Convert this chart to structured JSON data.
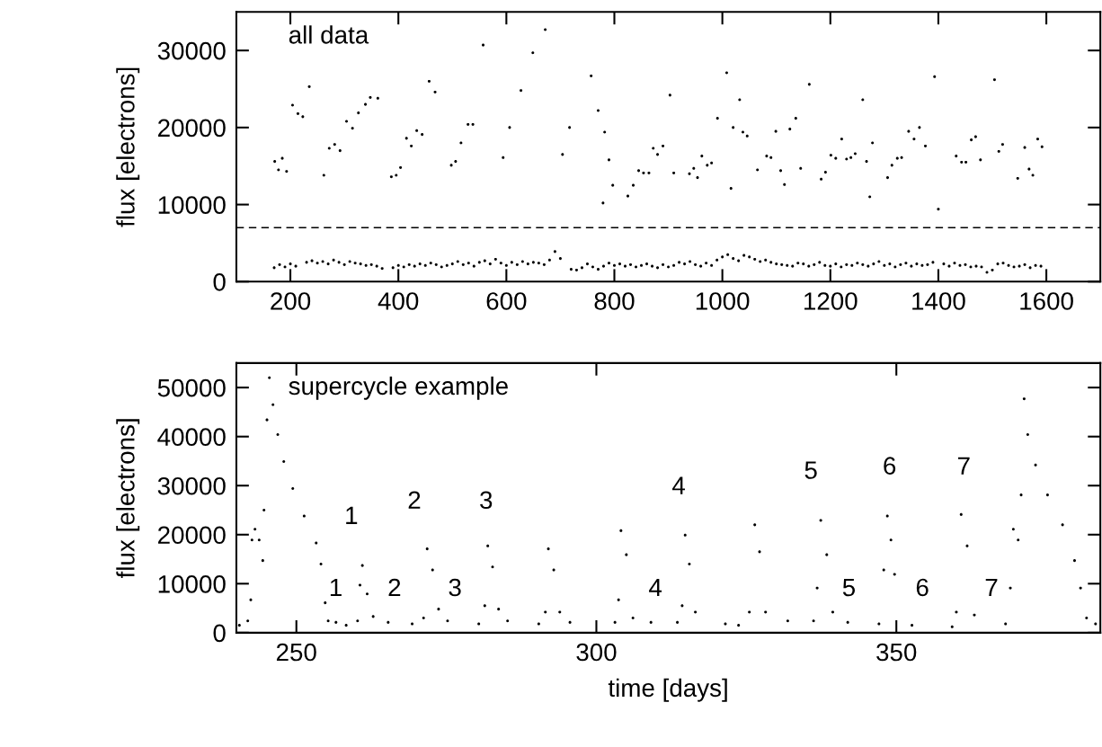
{
  "chart_data": [
    {
      "type": "scatter",
      "title": "all data",
      "ylabel": "flux [electrons]",
      "xlim": [
        100,
        1700
      ],
      "ylim": [
        0,
        35000
      ],
      "xticks": [
        200,
        400,
        600,
        800,
        1000,
        1200,
        1400,
        1600
      ],
      "yticks": [
        0,
        10000,
        20000,
        30000
      ],
      "marker": "circle",
      "ref_lines": [
        {
          "axis": "y",
          "value": 7000,
          "line_style": "dashed",
          "color": "#000000"
        }
      ],
      "series": [
        {
          "color": "#000000",
          "x": [
            171,
            178,
            185,
            193,
            204,
            214,
            223,
            235,
            262,
            272,
            282,
            292,
            304,
            315,
            326,
            339,
            348,
            362,
            387,
            396,
            404,
            415,
            424,
            434,
            444,
            457,
            468,
            498,
            506,
            516,
            529,
            538,
            557,
            594,
            606,
            627,
            649,
            672,
            704,
            717,
            757,
            770,
            782,
            790,
            797,
            779,
            825,
            835,
            845,
            854,
            864,
            872,
            880,
            890,
            903,
            910,
            939,
            947,
            954,
            962,
            972,
            980,
            991,
            1008,
            1016,
            1020,
            1032,
            1038,
            1046,
            1065,
            1082,
            1090,
            1099,
            1108,
            1115,
            1125,
            1136,
            1145,
            1161,
            1183,
            1191,
            1201,
            1210,
            1221,
            1230,
            1238,
            1246,
            1260,
            1267,
            1273,
            1278,
            1306,
            1314,
            1324,
            1332,
            1345,
            1355,
            1365,
            1376,
            1393,
            1400,
            1433,
            1443,
            1451,
            1461,
            1469,
            1478,
            1504,
            1512,
            1519,
            1547,
            1560,
            1568,
            1575,
            1584,
            1592
          ],
          "values": [
            15600,
            14500,
            16000,
            14300,
            22900,
            21800,
            21400,
            25300,
            13800,
            17300,
            17800,
            17000,
            20800,
            19900,
            21900,
            23000,
            23900,
            23800,
            13600,
            13800,
            14800,
            18600,
            17600,
            19600,
            19100,
            26000,
            24600,
            15100,
            15600,
            18000,
            20400,
            20400,
            30700,
            16100,
            20000,
            24800,
            29700,
            32700,
            16500,
            20000,
            26700,
            22200,
            19400,
            15800,
            12500,
            10200,
            11100,
            12500,
            14400,
            14100,
            14100,
            17300,
            16500,
            17600,
            24200,
            14100,
            14000,
            14700,
            13500,
            16300,
            15100,
            15400,
            21200,
            27100,
            12100,
            20000,
            23600,
            19400,
            18900,
            14500,
            16300,
            16100,
            19500,
            14400,
            12600,
            19800,
            21200,
            14700,
            25600,
            13300,
            14200,
            16400,
            16000,
            18500,
            15900,
            16100,
            16600,
            23600,
            15600,
            11000,
            18000,
            13500,
            15100,
            16000,
            16100,
            19500,
            18500,
            20000,
            17600,
            26600,
            9400,
            16300,
            15500,
            15500,
            18400,
            18800,
            15800,
            26200,
            16900,
            17800,
            13400,
            17400,
            14600,
            13800,
            18500,
            17500
          ]
        },
        {
          "color": "#000000",
          "x": [
            170,
            180,
            190,
            200,
            210,
            230,
            240,
            250,
            260,
            270,
            280,
            290,
            300,
            310,
            320,
            330,
            340,
            350,
            360,
            370,
            390,
            400,
            410,
            420,
            430,
            440,
            450,
            460,
            470,
            480,
            490,
            500,
            510,
            520,
            530,
            540,
            550,
            560,
            570,
            580,
            590,
            600,
            610,
            620,
            630,
            640,
            650,
            660,
            670,
            680,
            690,
            700,
            720,
            730,
            740,
            750,
            760,
            770,
            780,
            790,
            800,
            810,
            820,
            830,
            840,
            850,
            860,
            870,
            880,
            890,
            900,
            910,
            920,
            930,
            940,
            950,
            960,
            970,
            980,
            990,
            1000,
            1010,
            1020,
            1030,
            1040,
            1050,
            1060,
            1070,
            1080,
            1090,
            1100,
            1110,
            1120,
            1130,
            1140,
            1150,
            1160,
            1170,
            1180,
            1190,
            1200,
            1210,
            1220,
            1230,
            1240,
            1250,
            1260,
            1270,
            1280,
            1290,
            1300,
            1310,
            1320,
            1330,
            1340,
            1350,
            1360,
            1370,
            1380,
            1390,
            1410,
            1420,
            1430,
            1440,
            1450,
            1460,
            1470,
            1480,
            1490,
            1500,
            1510,
            1520,
            1530,
            1540,
            1550,
            1560,
            1570,
            1580,
            1590
          ],
          "values": [
            1800,
            2200,
            1900,
            2300,
            2000,
            2500,
            2700,
            2400,
            2600,
            2300,
            2800,
            2500,
            2200,
            2600,
            2400,
            2300,
            2100,
            2200,
            2000,
            1700,
            1800,
            2100,
            1900,
            2200,
            2000,
            2300,
            2100,
            2400,
            2200,
            1900,
            2100,
            2300,
            2600,
            2200,
            2400,
            2000,
            2500,
            2700,
            2300,
            2900,
            2400,
            2100,
            2500,
            2200,
            2600,
            2300,
            2500,
            2400,
            2200,
            2800,
            3900,
            3000,
            1600,
            1500,
            1800,
            2300,
            1900,
            1600,
            2000,
            2400,
            2100,
            2300,
            2000,
            2200,
            1900,
            2100,
            2300,
            2000,
            1800,
            2200,
            1900,
            2100,
            2500,
            2300,
            2600,
            2200,
            2000,
            2400,
            2100,
            2800,
            3200,
            3500,
            3000,
            2700,
            3400,
            3200,
            2900,
            2600,
            2800,
            2500,
            2300,
            2200,
            2100,
            2000,
            2400,
            2300,
            2000,
            2200,
            2500,
            2100,
            2000,
            2300,
            1900,
            2200,
            2100,
            2400,
            2200,
            2000,
            2300,
            2600,
            2100,
            2300,
            1900,
            2200,
            2400,
            2000,
            2300,
            2100,
            2200,
            2500,
            2300,
            2000,
            2400,
            2100,
            2200,
            1900,
            2000,
            1900,
            1200,
            1500,
            2300,
            2400,
            2100,
            1900,
            2000,
            2200,
            1800,
            2100,
            2000
          ]
        }
      ]
    },
    {
      "type": "scatter",
      "title": "supercycle example",
      "xlabel": "time [days]",
      "ylabel": "flux [electrons]",
      "xlim": [
        240,
        384
      ],
      "ylim": [
        0,
        55000
      ],
      "xticks": [
        250,
        300,
        350
      ],
      "yticks": [
        0,
        10000,
        20000,
        30000,
        40000,
        50000
      ],
      "marker": "circle",
      "annotations": [
        "1",
        "2",
        "3",
        "4",
        "5",
        "6",
        "7",
        "1",
        "2",
        "3",
        "4",
        "5",
        "6",
        "7"
      ],
      "series": [
        {
          "color": "#000000",
          "x": [
            240.5,
            241.9,
            242.4,
            242.6,
            243.1,
            243.8,
            244.4,
            244.6,
            245.1,
            245.5,
            246.1,
            246.9,
            247.9,
            249.4,
            251.3,
            253.3,
            254.1,
            254.8,
            255.3,
            256.6,
            258.3,
            260.2,
            260.6,
            261.0,
            261.8,
            262.8,
            265.3,
            269.3,
            271.2,
            271.8,
            272.7,
            273.7,
            275.2,
            280.4,
            281.4,
            281.9,
            282.7,
            283.7,
            285.2,
            290.4,
            291.5,
            292.0,
            292.9,
            293.9,
            295.6,
            303.1,
            303.7,
            304.1,
            305.0,
            306.1,
            309.1,
            313.5,
            314.3,
            314.8,
            315.5,
            316.5,
            321.5,
            323.7,
            325.5,
            326.4,
            327.2,
            328.2,
            331.9,
            336.2,
            336.8,
            337.4,
            338.4,
            339.4,
            341.9,
            347.1,
            347.9,
            348.5,
            349.1,
            349.7,
            352.6,
            359.3,
            360.0,
            360.8,
            361.8,
            363.0,
            368.2,
            369.0,
            369.5,
            370.3,
            370.8,
            371.3,
            371.9,
            373.2,
            375.2,
            377.7,
            379.7,
            380.7,
            381.7,
            383.2
          ],
          "values": [
            1500,
            2400,
            6700,
            18900,
            21100,
            18900,
            14700,
            25000,
            43400,
            52000,
            46500,
            40400,
            34900,
            29400,
            23800,
            18300,
            14000,
            6100,
            2400,
            2100,
            1500,
            2400,
            9700,
            13700,
            7900,
            3300,
            2100,
            1800,
            3000,
            17100,
            12800,
            4800,
            2400,
            1800,
            5500,
            17700,
            13400,
            4800,
            2400,
            1800,
            4200,
            17100,
            12800,
            4200,
            2100,
            2100,
            6700,
            20800,
            15900,
            3000,
            2100,
            2100,
            5500,
            19900,
            14000,
            4200,
            1800,
            1500,
            4200,
            22000,
            16500,
            4200,
            2400,
            2400,
            9100,
            22900,
            15900,
            4200,
            2100,
            1800,
            12800,
            23800,
            18900,
            11900,
            1500,
            1200,
            4200,
            24100,
            17700,
            3600,
            1800,
            9100,
            21100,
            18900,
            28100,
            47700,
            40400,
            34200,
            28100,
            22000,
            14700,
            9100,
            3000,
            1800
          ]
        }
      ]
    }
  ]
}
